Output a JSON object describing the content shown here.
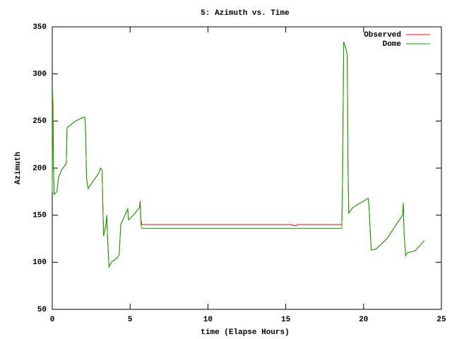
{
  "chart_data": {
    "type": "line",
    "title": "5: Azimuth vs. Time",
    "x_label": "time (Elapse Hours)",
    "y_label": "Azimuth",
    "x": [
      0,
      0.02,
      0.05,
      0.08,
      0.12,
      0.3,
      0.4,
      0.6,
      0.9,
      0.95,
      1.2,
      1.5,
      2.0,
      2.1,
      2.15,
      2.2,
      2.3,
      2.5,
      3.0,
      3.1,
      3.2,
      3.25,
      3.3,
      3.45,
      3.5,
      3.55,
      3.6,
      3.65,
      3.8,
      4.2,
      4.3,
      4.4,
      4.8,
      4.85,
      4.9,
      5.2,
      5.6,
      5.65,
      5.7,
      5.75,
      15.4,
      15.45,
      15.7,
      15.75,
      18.6,
      18.65,
      18.7,
      18.72,
      18.8,
      18.9,
      18.95,
      19.0,
      19.05,
      19.3,
      20.3,
      20.35,
      20.45,
      20.5,
      20.8,
      21.5,
      22.3,
      22.5,
      22.55,
      22.6,
      22.7,
      22.8,
      23.3,
      23.9
    ],
    "series": [
      {
        "name": "Observed",
        "color": "#ff0000",
        "values": [
          175,
          282,
          267,
          200,
          172,
          175,
          190,
          198,
          205,
          243,
          246,
          250,
          254,
          254,
          235,
          190,
          178,
          183,
          195,
          200,
          198,
          160,
          128,
          140,
          150,
          127,
          110,
          95,
          100,
          105,
          108,
          140,
          155,
          157,
          145,
          150,
          158,
          165,
          145,
          140,
          140,
          139,
          139,
          140,
          140,
          187,
          290,
          334,
          330,
          325,
          320,
          200,
          152,
          158,
          168,
          160,
          125,
          113,
          114,
          125,
          145,
          150,
          163,
          132,
          107,
          110,
          112,
          123
        ]
      },
      {
        "name": "Dome",
        "color": "#00b000",
        "values": [
          175,
          282,
          230,
          200,
          172,
          175,
          190,
          198,
          205,
          243,
          246,
          250,
          254,
          254,
          235,
          190,
          178,
          183,
          195,
          200,
          198,
          160,
          128,
          140,
          150,
          127,
          110,
          95,
          100,
          105,
          108,
          140,
          155,
          157,
          145,
          150,
          158,
          162,
          140,
          136,
          136,
          136,
          136,
          136,
          136,
          187,
          290,
          334,
          330,
          325,
          320,
          200,
          152,
          158,
          168,
          160,
          125,
          113,
          114,
          125,
          145,
          150,
          163,
          132,
          107,
          110,
          112,
          123
        ]
      }
    ],
    "xlim": [
      0,
      25
    ],
    "xticks": [
      0,
      5,
      10,
      15,
      20,
      25
    ],
    "ylim": [
      50,
      350
    ],
    "yticks": [
      50,
      100,
      150,
      200,
      250,
      300,
      350
    ],
    "legend": "top-right"
  }
}
